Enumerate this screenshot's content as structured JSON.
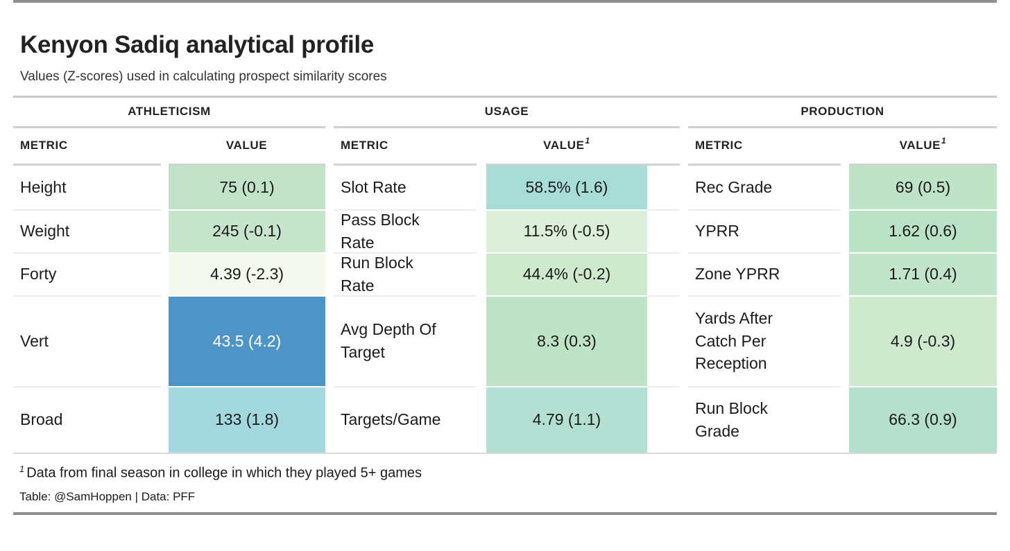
{
  "page": {
    "title": "Kenyon Sadiq analytical profile",
    "subtitle": "Values (Z-scores) used in calculating prospect similarity scores",
    "footnote_mark": "1",
    "footnote_text": "Data from final season in college in which they played 5+ games",
    "credit": "Table: @SamHoppen | Data: PFF"
  },
  "table": {
    "groups": [
      {
        "label": "ATHLETICISM",
        "metric_header": "METRIC",
        "value_header": "VALUE",
        "value_footnote_mark": "",
        "rows": [
          {
            "metric": "Height",
            "value": "75 (0.1)",
            "bg": "#c2e3c7",
            "fg": "#1b1b1b"
          },
          {
            "metric": "Weight",
            "value": "245 (-0.1)",
            "bg": "#c6e5cb",
            "fg": "#1b1b1b"
          },
          {
            "metric": "Forty",
            "value": "4.39 (-2.3)",
            "bg": "#f3f9ef",
            "fg": "#1b1b1b"
          },
          {
            "metric": "Vert",
            "value": "43.5 (4.2)",
            "bg": "#4f94c7",
            "fg": "#ffffff"
          },
          {
            "metric": "Broad",
            "value": "133 (1.8)",
            "bg": "#a2d8de",
            "fg": "#1b1b1b"
          }
        ]
      },
      {
        "label": "USAGE",
        "metric_header": "METRIC",
        "value_header": "VALUE",
        "value_footnote_mark": "1",
        "rows": [
          {
            "metric": "Slot Rate",
            "value": "58.5% (1.6)",
            "bg": "#a7ddd6",
            "fg": "#1b1b1b"
          },
          {
            "metric": "Pass Block Rate",
            "value": "11.5% (-0.5)",
            "bg": "#dcefda",
            "fg": "#1b1b1b"
          },
          {
            "metric": "Run Block Rate",
            "value": "44.4% (-0.2)",
            "bg": "#cfe9cf",
            "fg": "#1b1b1b"
          },
          {
            "metric": "Avg Depth Of Target",
            "value": "8.3 (0.3)",
            "bg": "#bfe3c7",
            "fg": "#1b1b1b"
          },
          {
            "metric": "Targets/Game",
            "value": "4.79 (1.1)",
            "bg": "#b3e0d2",
            "fg": "#1b1b1b"
          }
        ]
      },
      {
        "label": "PRODUCTION",
        "metric_header": "METRIC",
        "value_header": "VALUE",
        "value_footnote_mark": "1",
        "rows": [
          {
            "metric": "Rec Grade",
            "value": "69 (0.5)",
            "bg": "#bfe3c6",
            "fg": "#1b1b1b"
          },
          {
            "metric": "YPRR",
            "value": "1.62 (0.6)",
            "bg": "#bae2c6",
            "fg": "#1b1b1b"
          },
          {
            "metric": "Zone YPRR",
            "value": "1.71 (0.4)",
            "bg": "#c2e4cb",
            "fg": "#1b1b1b"
          },
          {
            "metric": "Yards After Catch Per Reception",
            "value": "4.9 (-0.3)",
            "bg": "#cfe9cf",
            "fg": "#1b1b1b"
          },
          {
            "metric": "Run Block Grade",
            "value": "66.3 (0.9)",
            "bg": "#b5e0cd",
            "fg": "#1b1b1b"
          }
        ]
      }
    ]
  },
  "chart_data": {
    "type": "table",
    "title": "Kenyon Sadiq analytical profile",
    "subtitle": "Values (Z-scores) used in calculating prospect similarity scores",
    "column_groups": [
      "ATHLETICISM",
      "USAGE",
      "PRODUCTION"
    ],
    "columns_per_group": [
      "METRIC",
      "VALUE"
    ],
    "sections": [
      {
        "name": "ATHLETICISM",
        "rows": [
          {
            "metric": "Height",
            "value": 75,
            "z_score": 0.1
          },
          {
            "metric": "Weight",
            "value": 245,
            "z_score": -0.1
          },
          {
            "metric": "Forty",
            "value": 4.39,
            "z_score": -2.3
          },
          {
            "metric": "Vert",
            "value": 43.5,
            "z_score": 4.2
          },
          {
            "metric": "Broad",
            "value": 133,
            "z_score": 1.8
          }
        ]
      },
      {
        "name": "USAGE",
        "rows": [
          {
            "metric": "Slot Rate",
            "value": "58.5%",
            "z_score": 1.6
          },
          {
            "metric": "Pass Block Rate",
            "value": "11.5%",
            "z_score": -0.5
          },
          {
            "metric": "Run Block Rate",
            "value": "44.4%",
            "z_score": -0.2
          },
          {
            "metric": "Avg Depth Of Target",
            "value": 8.3,
            "z_score": 0.3
          },
          {
            "metric": "Targets/Game",
            "value": 4.79,
            "z_score": 1.1
          }
        ]
      },
      {
        "name": "PRODUCTION",
        "rows": [
          {
            "metric": "Rec Grade",
            "value": 69,
            "z_score": 0.5
          },
          {
            "metric": "YPRR",
            "value": 1.62,
            "z_score": 0.6
          },
          {
            "metric": "Zone YPRR",
            "value": 1.71,
            "z_score": 0.4
          },
          {
            "metric": "Yards After Catch Per Reception",
            "value": 4.9,
            "z_score": -0.3
          },
          {
            "metric": "Run Block Grade",
            "value": 66.3,
            "z_score": 0.9
          }
        ]
      }
    ],
    "footnote": "1 Data from final season in college in which they played 5+ games",
    "credit": "Table: @SamHoppen | Data: PFF",
    "color_scale_note": "cell fill encodes z-score: white/light green = low, green = average, teal = high, dark blue = extreme high",
    "accent_colors": {
      "extreme_high": "#4f94c7",
      "high": "#a2d8de",
      "mid": "#c2e3c7",
      "low": "#f3f9ef"
    }
  }
}
